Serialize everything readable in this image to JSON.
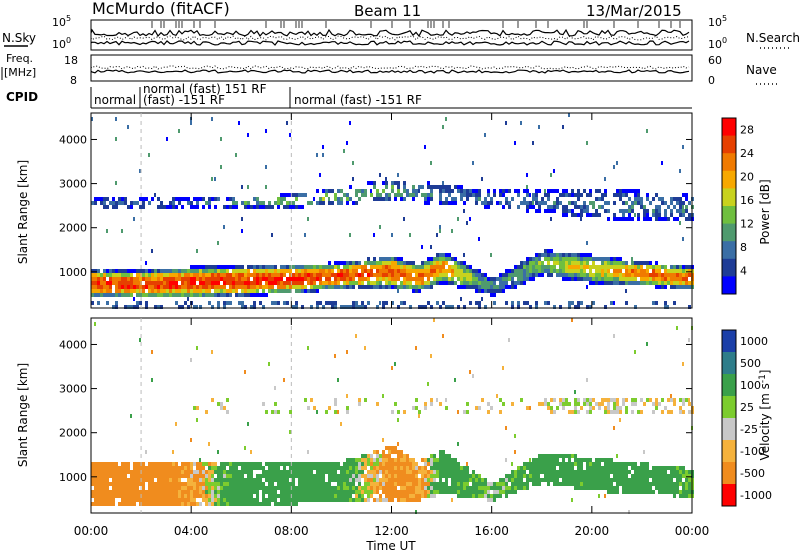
{
  "header": {
    "title": "McMurdo (fitACF)",
    "beam": "Beam 11",
    "date": "13/Mar/2015"
  },
  "panels": {
    "nsky_label": "N.Sky",
    "nsky_ticks": [
      "10^5",
      "10^0"
    ],
    "nsearch_label": "N.Search",
    "nsearch_ticks": [
      "10^5",
      "10^0"
    ],
    "freq_label_1": "Freq.",
    "freq_label_2": "[MHz]",
    "freq_ticks": [
      "18",
      "8"
    ],
    "nave_label": "Nave",
    "nave_ticks": [
      "60",
      "0"
    ],
    "cpid_label": "CPID",
    "cpid_segments": [
      {
        "label": "normal",
        "start_hour": 0,
        "end_hour": 2
      },
      {
        "label": "normal (fast) 151 RF",
        "start_hour": 2,
        "end_hour": 8
      },
      {
        "label": "(fast) -151 RF",
        "start_hour": 2,
        "end_hour": 8
      },
      {
        "label": "normal (fast) -151 RF",
        "start_hour": 8,
        "end_hour": 24
      }
    ]
  },
  "x_axis": {
    "label": "Time UT",
    "ticks": [
      "00:00",
      "04:00",
      "08:00",
      "12:00",
      "16:00",
      "20:00",
      "00:00"
    ]
  },
  "chart_data": [
    {
      "type": "heatmap",
      "title": "Power",
      "xlabel": "Time UT",
      "ylabel": "Slant Range [km]",
      "xlim": [
        0,
        24
      ],
      "ylim": [
        180,
        4600
      ],
      "yticks": [
        1000,
        2000,
        3000,
        4000
      ],
      "colorbar": {
        "label": "Power [dB]",
        "ticks": [
          "28",
          "24",
          "20",
          "16",
          "12",
          "8",
          "4"
        ],
        "range": [
          0,
          30
        ],
        "colors": [
          "#0000ff",
          "#1e3c96",
          "#3a6ea5",
          "#4f9a6e",
          "#6fbf3f",
          "#c8d21e",
          "#f7a800",
          "#f07a00",
          "#e64000",
          "#ff0000"
        ]
      },
      "bands": [
        {
          "name": "main",
          "hours": [
            0,
            2,
            4,
            6,
            8,
            10,
            12,
            13,
            14,
            16,
            18,
            20,
            22,
            24
          ],
          "center_km": [
            780,
            760,
            800,
            840,
            880,
            960,
            1040,
            900,
            1150,
            700,
            1250,
            1100,
            1000,
            900
          ],
          "half_width_km": [
            320,
            330,
            360,
            350,
            330,
            300,
            380,
            320,
            360,
            200,
            300,
            320,
            280,
            260
          ],
          "peak_db": [
            26,
            26,
            27,
            27,
            27,
            26,
            24,
            24,
            22,
            8,
            14,
            18,
            24,
            24
          ]
        },
        {
          "name": "upper",
          "hours": [
            0,
            4,
            8,
            12,
            16,
            20,
            24
          ],
          "center_km": [
            2600,
            2600,
            2650,
            2900,
            2700,
            2600,
            2500
          ],
          "half_width_km": [
            120,
            100,
            150,
            250,
            200,
            350,
            300
          ],
          "peak_db": [
            6,
            6,
            14,
            10,
            6,
            8,
            8
          ]
        }
      ]
    },
    {
      "type": "heatmap",
      "title": "Velocity",
      "xlabel": "Time UT",
      "ylabel": "Slant Range [km]",
      "xlim": [
        0,
        24
      ],
      "ylim": [
        180,
        4600
      ],
      "yticks": [
        1000,
        2000,
        3000,
        4000
      ],
      "colorbar": {
        "label": "Velocity [m s^-1]",
        "ticks": [
          "1000",
          "500",
          "100",
          "25",
          "-25",
          "-100",
          "-500",
          "-1000"
        ],
        "levels": [
          1000,
          500,
          100,
          25,
          -25,
          -100,
          -500,
          -1000
        ],
        "colors": [
          "#1b3fa8",
          "#2e7d8a",
          "#3aa04a",
          "#7ccc2e",
          "#c8c8c8",
          "#f5b23c",
          "#f08c1e",
          "#ff0000"
        ]
      },
      "bands": [
        {
          "name": "main",
          "hours": [
            0,
            2,
            4,
            6,
            8,
            10,
            12,
            13,
            14,
            16,
            18,
            20,
            22,
            24
          ],
          "center_km": [
            900,
            880,
            900,
            920,
            900,
            950,
            1100,
            950,
            1150,
            700,
            1250,
            1100,
            1000,
            900
          ],
          "half_width_km": [
            480,
            460,
            500,
            500,
            480,
            450,
            650,
            450,
            500,
            200,
            350,
            380,
            350,
            320
          ],
          "velocity": [
            -300,
            -300,
            -150,
            300,
            350,
            200,
            -200,
            -150,
            250,
            100,
            250,
            200,
            300,
            150
          ]
        }
      ]
    }
  ]
}
